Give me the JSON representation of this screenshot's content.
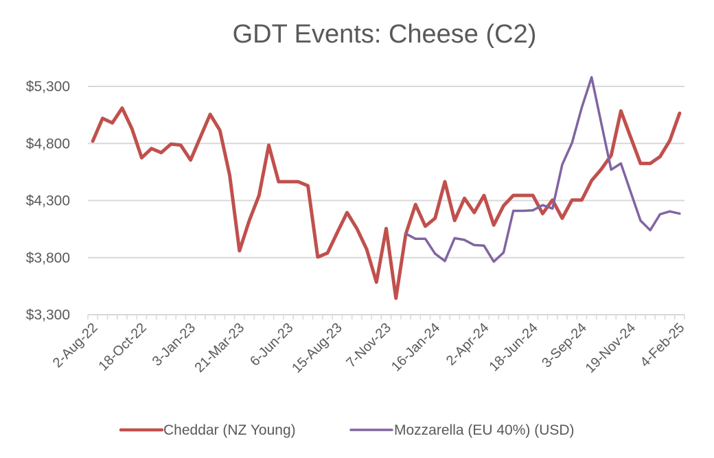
{
  "chart_data": {
    "type": "line",
    "title": "GDT Events: Cheese (C2)",
    "xlabel": "",
    "ylabel": "",
    "ylim": [
      3300,
      5300
    ],
    "y_ticks": [
      3300,
      3800,
      4300,
      4800,
      5300
    ],
    "y_tick_labels": [
      "$3,300",
      "$3,800",
      "$4,300",
      "$4,800",
      "$5,300"
    ],
    "x_tick_labels": [
      {
        "index": 0,
        "label": "2-Aug-22"
      },
      {
        "index": 5,
        "label": "18-Oct-22"
      },
      {
        "index": 10,
        "label": "3-Jan-23"
      },
      {
        "index": 15,
        "label": "21-Mar-23"
      },
      {
        "index": 20,
        "label": "6-Jun-23"
      },
      {
        "index": 25,
        "label": "15-Aug-23"
      },
      {
        "index": 30,
        "label": "7-Nov-23"
      },
      {
        "index": 35,
        "label": "16-Jan-24"
      },
      {
        "index": 40,
        "label": "2-Apr-24"
      },
      {
        "index": 45,
        "label": "18-Jun-24"
      },
      {
        "index": 50,
        "label": "3-Sep-24"
      },
      {
        "index": 55,
        "label": "19-Nov-24"
      },
      {
        "index": 60,
        "label": "4-Feb-25"
      }
    ],
    "grid": true,
    "legend_position": "bottom",
    "series": [
      {
        "name": "Cheddar (NZ Young)",
        "color": "#c0504d",
        "values": [
          4820,
          5020,
          4980,
          5110,
          4930,
          4675,
          4755,
          4720,
          4795,
          4785,
          4655,
          4855,
          5055,
          4915,
          4520,
          3860,
          4125,
          4345,
          4785,
          4465,
          4465,
          4465,
          4430,
          3805,
          3840,
          4020,
          4195,
          4055,
          3875,
          3585,
          4055,
          3445,
          4005,
          4265,
          4075,
          4145,
          4465,
          4125,
          4320,
          4195,
          4345,
          4085,
          4255,
          4345,
          4345,
          4345,
          4185,
          4305,
          4145,
          4305,
          4305,
          4475,
          4575,
          4695,
          5085,
          4855,
          4625,
          4625,
          4685,
          4825,
          5065
        ]
      },
      {
        "name": "Mozzarella (EU 40%) (USD)",
        "color": "#8064a2",
        "values": [
          null,
          null,
          null,
          null,
          null,
          null,
          null,
          null,
          null,
          null,
          null,
          null,
          null,
          null,
          null,
          null,
          null,
          null,
          null,
          null,
          null,
          null,
          null,
          null,
          null,
          null,
          null,
          null,
          null,
          null,
          null,
          null,
          4010,
          3965,
          3965,
          3835,
          3770,
          3970,
          3955,
          3910,
          3905,
          3765,
          3845,
          4210,
          4210,
          4215,
          4260,
          4230,
          4615,
          4805,
          5115,
          5380,
          4975,
          4570,
          4625,
          4375,
          4125,
          4040,
          4180,
          4205,
          4185
        ]
      }
    ]
  }
}
